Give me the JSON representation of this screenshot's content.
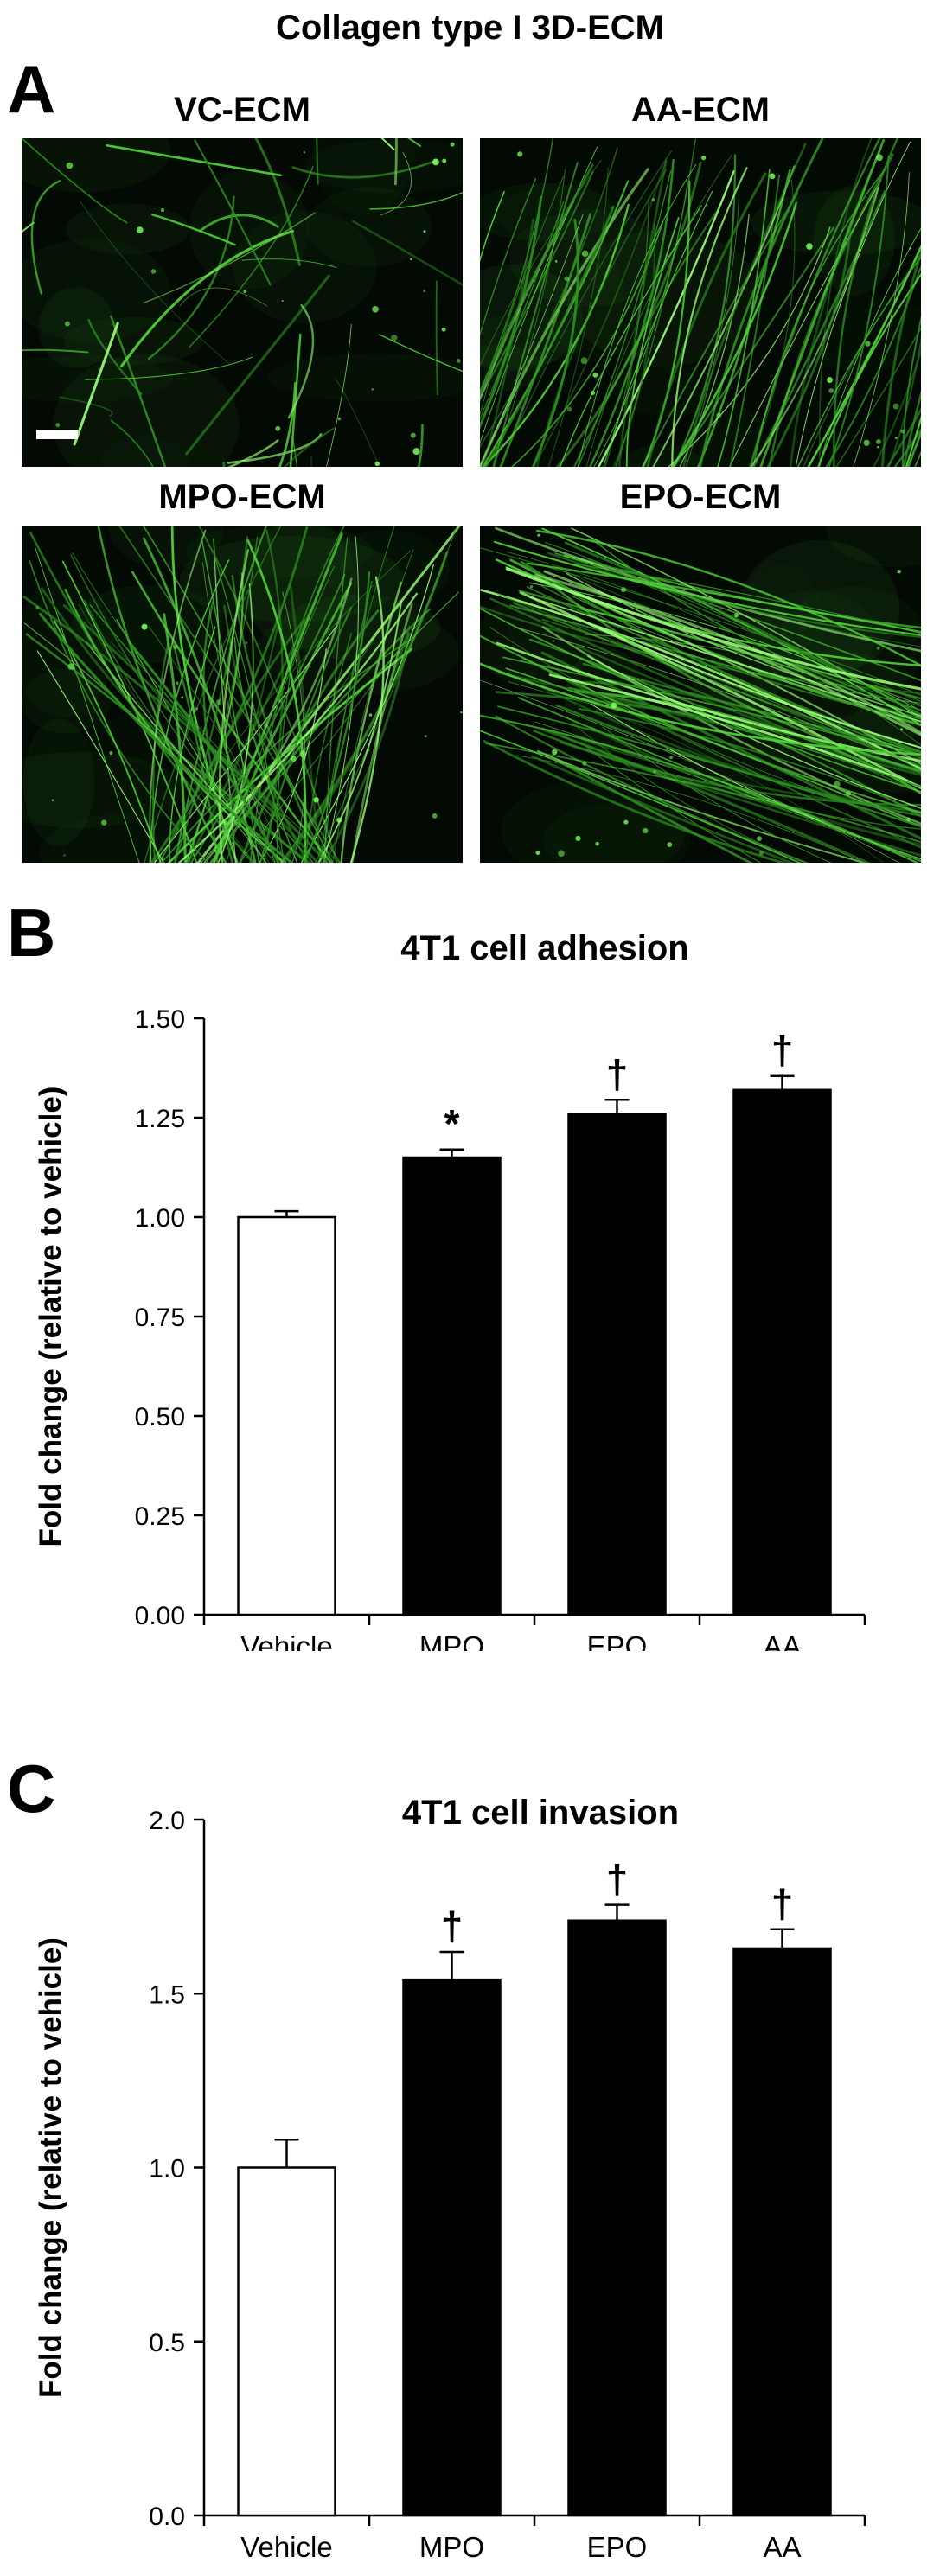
{
  "figure_title": "Collagen type I 3D-ECM",
  "panel_a": {
    "letter": "A",
    "images": [
      {
        "label": "VC-ECM"
      },
      {
        "label": "AA-ECM"
      },
      {
        "label": "MPO-ECM"
      },
      {
        "label": "EPO-ECM"
      }
    ]
  },
  "panel_b": {
    "letter": "B"
  },
  "panel_c": {
    "letter": "C"
  },
  "chart_data": [
    {
      "type": "bar",
      "title": "4T1 cell adhesion",
      "ylabel": "Fold change (relative to vehicle)",
      "xlabel": "",
      "categories": [
        "Vehicle",
        "MPO",
        "EPO",
        "AA"
      ],
      "values": [
        1.0,
        1.15,
        1.26,
        1.32
      ],
      "errors": [
        0.015,
        0.02,
        0.035,
        0.035
      ],
      "bar_colors": [
        "#ffffff",
        "#000000",
        "#000000",
        "#000000"
      ],
      "significance": [
        "",
        "*",
        "†",
        "†"
      ],
      "ylim": [
        0,
        1.5
      ],
      "yticks": [
        0.0,
        0.25,
        0.5,
        0.75,
        1.0,
        1.25,
        1.5
      ],
      "ytick_labels": [
        "0.00",
        "0.25",
        "0.50",
        "0.75",
        "1.00",
        "1.25",
        "1.50"
      ],
      "grid": false
    },
    {
      "type": "bar",
      "title": "4T1 cell invasion",
      "ylabel": "Fold change (relative to vehicle)",
      "xlabel": "",
      "categories": [
        "Vehicle",
        "MPO",
        "EPO",
        "AA"
      ],
      "values": [
        1.0,
        1.54,
        1.71,
        1.63
      ],
      "errors": [
        0.08,
        0.08,
        0.045,
        0.055
      ],
      "bar_colors": [
        "#ffffff",
        "#000000",
        "#000000",
        "#000000"
      ],
      "significance": [
        "",
        "†",
        "†",
        "†"
      ],
      "ylim": [
        0,
        2.0
      ],
      "yticks": [
        0.0,
        0.5,
        1.0,
        1.5,
        2.0
      ],
      "ytick_labels": [
        "0.0",
        "0.5",
        "1.0",
        "1.5",
        "2.0"
      ],
      "grid": false
    }
  ]
}
